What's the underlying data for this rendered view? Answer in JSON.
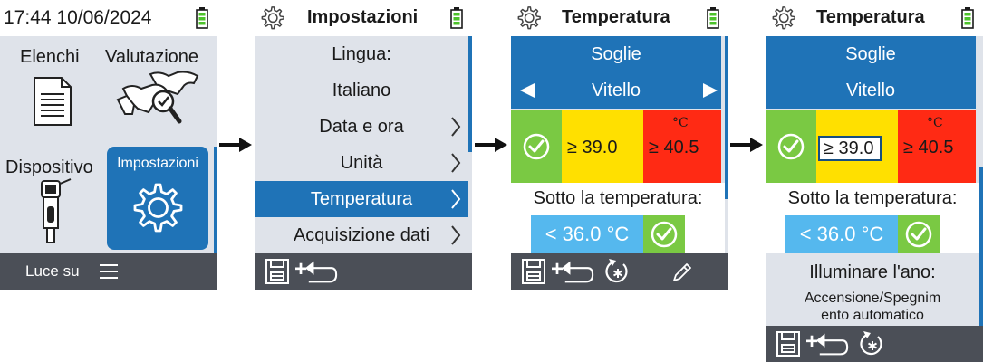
{
  "colors": {
    "accent": "#1f73b7",
    "green": "#7ac943",
    "yellow": "#ffe000",
    "red": "#ff2a14",
    "lightblue": "#55b8ee",
    "footer": "#4b4f57",
    "body": "#dfe3ea"
  },
  "screen1": {
    "datetime": "17:44 10/06/2024",
    "tiles": {
      "elenchi": "Elenchi",
      "valutazione": "Valutazione",
      "dispositivo": "Dispositivo",
      "impostazioni": "Impostazioni"
    },
    "footer_label": "Luce su"
  },
  "screen2": {
    "title": "Impostazioni",
    "items": [
      {
        "label": "Lingua:"
      },
      {
        "label": "Italiano"
      },
      {
        "label": "Data e ora"
      },
      {
        "label": "Unità"
      },
      {
        "label": "Temperatura"
      },
      {
        "label": "Acquisizione dati"
      }
    ],
    "footer_plus": "+"
  },
  "screen3": {
    "title": "Temperatura",
    "soglie": "Soglie",
    "animal": "Vitello",
    "yellow_value": "≥ 39.0",
    "red_value": "≥ 40.5",
    "unit": "°C",
    "sotto_label": "Sotto la temperatura:",
    "low_value": "< 36.0 °C",
    "footer_plus": "+"
  },
  "screen4": {
    "title": "Temperatura",
    "soglie": "Soglie",
    "animal": "Vitello",
    "yellow_value": "≥ 39.0",
    "red_value": "≥ 40.5",
    "unit": "°C",
    "sotto_label": "Sotto la temperatura:",
    "low_value": "< 36.0 °C",
    "illum_label": "Illuminare l'ano:",
    "illum_value_1": "Accensione/Spegnim",
    "illum_value_2": "ento automatico",
    "footer_plus": "+"
  },
  "icons": [
    "gear-icon",
    "battery-icon",
    "list-icon",
    "cow-search-icon",
    "device-icon",
    "settings-gear-icon",
    "hamburger-icon",
    "chevron-right-icon",
    "arrow-left-icon",
    "arrow-right-icon",
    "check-icon",
    "save-icon",
    "back-icon",
    "reset-icon",
    "pencil-icon",
    "flow-arrow-icon"
  ]
}
